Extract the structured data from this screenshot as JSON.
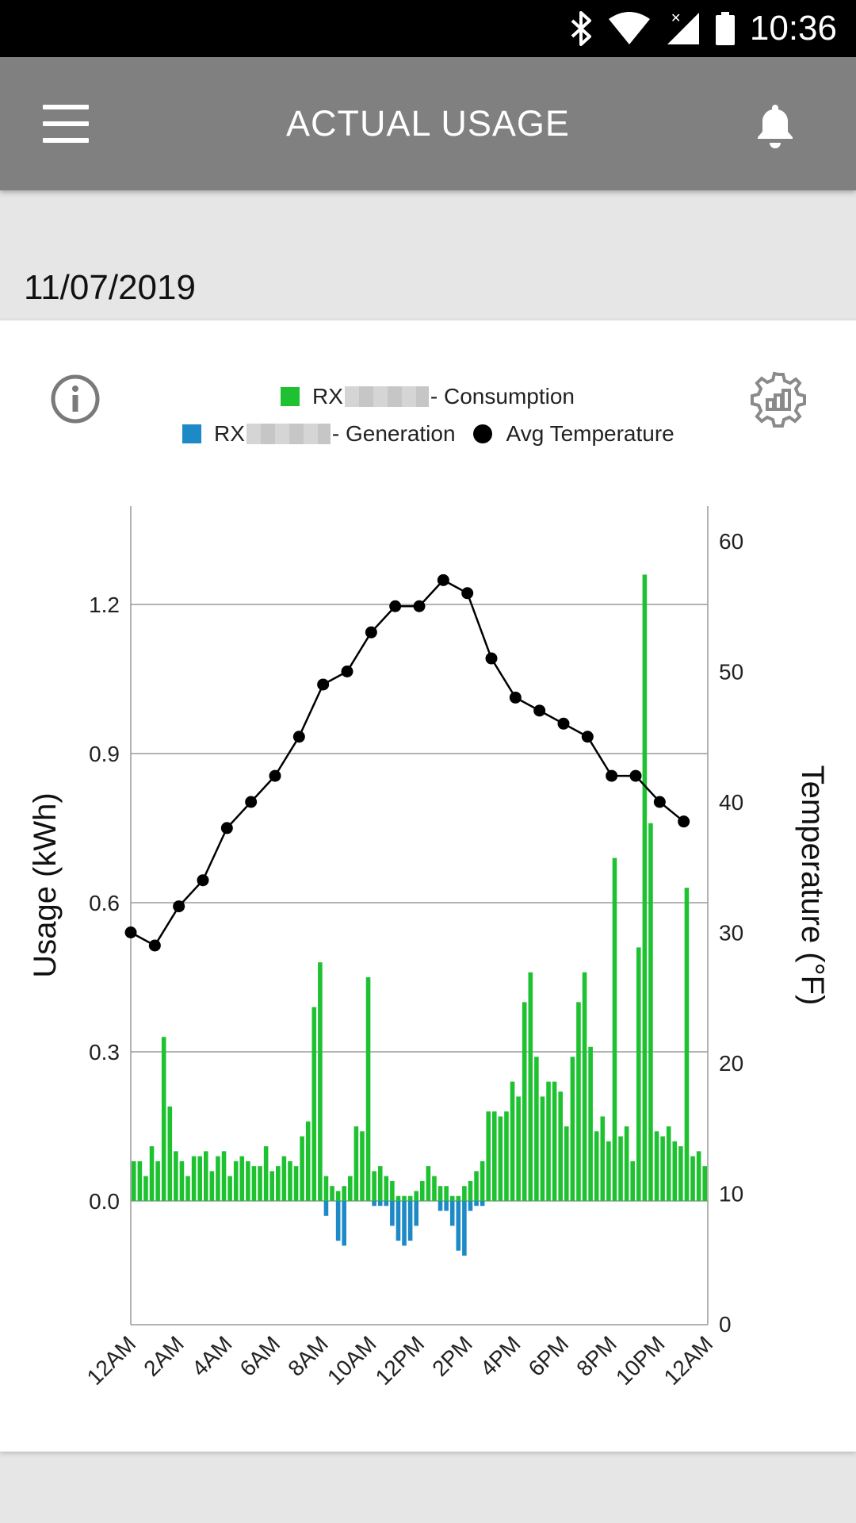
{
  "status_bar": {
    "time": "10:36",
    "icons": [
      "bluetooth-icon",
      "wifi-icon",
      "signal-icon",
      "battery-icon"
    ]
  },
  "header": {
    "title": "ACTUAL USAGE",
    "menu_icon": "menu-icon",
    "notification_icon": "bell-icon"
  },
  "date": "11/07/2019",
  "card": {
    "info_icon": "info-icon",
    "settings_icon": "chart-settings-icon"
  },
  "legend": {
    "consumption": {
      "prefix": "RX",
      "suffix": "- Consumption"
    },
    "generation": {
      "prefix": "RX",
      "suffix": "- Generation"
    },
    "temperature": "Avg Temperature"
  },
  "colors": {
    "consumption": "#1ec231",
    "generation": "#1d8ac7",
    "temperature": "#000000",
    "header": "#808080"
  },
  "chart_data": {
    "type": "bar",
    "title": "",
    "xlabel": "",
    "ylabel": "Usage (kWh)",
    "y2label": "Temperature (°F)",
    "ylim": [
      -0.3,
      1.4
    ],
    "y2lim": [
      0,
      62
    ],
    "yticks": [
      "0.0",
      "0.3",
      "0.6",
      "0.9",
      "1.2"
    ],
    "y2ticks": [
      "0",
      "10",
      "20",
      "30",
      "40",
      "50",
      "60"
    ],
    "xticks": [
      "12AM",
      "2AM",
      "4AM",
      "6AM",
      "8AM",
      "10AM",
      "12PM",
      "2PM",
      "4PM",
      "6PM",
      "8PM",
      "10PM",
      "12AM"
    ],
    "interval_minutes": 15,
    "series": [
      {
        "name": "Consumption",
        "type": "bar",
        "values": [
          0.08,
          0.08,
          0.05,
          0.11,
          0.08,
          0.33,
          0.19,
          0.1,
          0.08,
          0.05,
          0.09,
          0.09,
          0.1,
          0.06,
          0.09,
          0.1,
          0.05,
          0.08,
          0.09,
          0.08,
          0.07,
          0.07,
          0.11,
          0.06,
          0.07,
          0.09,
          0.08,
          0.07,
          0.13,
          0.16,
          0.39,
          0.48,
          0.05,
          0.03,
          0.02,
          0.03,
          0.05,
          0.15,
          0.14,
          0.45,
          0.06,
          0.07,
          0.05,
          0.04,
          0.01,
          0.01,
          0.01,
          0.02,
          0.04,
          0.07,
          0.05,
          0.03,
          0.03,
          0.01,
          0.01,
          0.03,
          0.04,
          0.06,
          0.08,
          0.18,
          0.18,
          0.17,
          0.18,
          0.24,
          0.21,
          0.4,
          0.46,
          0.29,
          0.21,
          0.24,
          0.24,
          0.22,
          0.15,
          0.29,
          0.4,
          0.46,
          0.31,
          0.14,
          0.17,
          0.12,
          0.69,
          0.13,
          0.15,
          0.08,
          0.51,
          1.26,
          0.76,
          0.14,
          0.13,
          0.15,
          0.12,
          0.11,
          0.63,
          0.09,
          0.1,
          0.07
        ]
      },
      {
        "name": "Generation",
        "type": "bar",
        "values": [
          0,
          0,
          0,
          0,
          0,
          0,
          0,
          0,
          0,
          0,
          0,
          0,
          0,
          0,
          0,
          0,
          0,
          0,
          0,
          0,
          0,
          0,
          0,
          0,
          0,
          0,
          0,
          0,
          0,
          0,
          0,
          0,
          -0.03,
          0,
          -0.08,
          -0.09,
          0,
          0,
          0,
          0,
          -0.01,
          -0.01,
          -0.01,
          -0.05,
          -0.08,
          -0.09,
          -0.08,
          -0.05,
          0,
          0,
          0,
          -0.02,
          -0.02,
          -0.05,
          -0.1,
          -0.11,
          -0.02,
          -0.01,
          -0.01,
          0,
          0,
          0,
          0,
          0,
          0,
          0,
          0,
          0,
          0,
          0,
          0,
          0,
          0,
          0,
          0,
          0,
          0,
          0,
          0,
          0,
          0,
          0,
          0,
          0,
          0,
          0,
          0,
          0,
          0,
          0,
          0,
          0,
          0,
          0,
          0,
          0
        ]
      },
      {
        "name": "Avg Temperature",
        "type": "line",
        "x_hours": [
          0,
          1,
          2,
          3,
          4,
          5,
          6,
          7,
          8,
          9,
          10,
          11,
          12,
          13,
          14,
          15,
          16,
          17,
          18,
          19,
          20,
          21,
          22,
          23
        ],
        "values": [
          30,
          29,
          32,
          34,
          38,
          40,
          42,
          45,
          49,
          50,
          53,
          55,
          55,
          57,
          56,
          51,
          48,
          47,
          46,
          45,
          42,
          42,
          40,
          38.5
        ]
      }
    ]
  }
}
